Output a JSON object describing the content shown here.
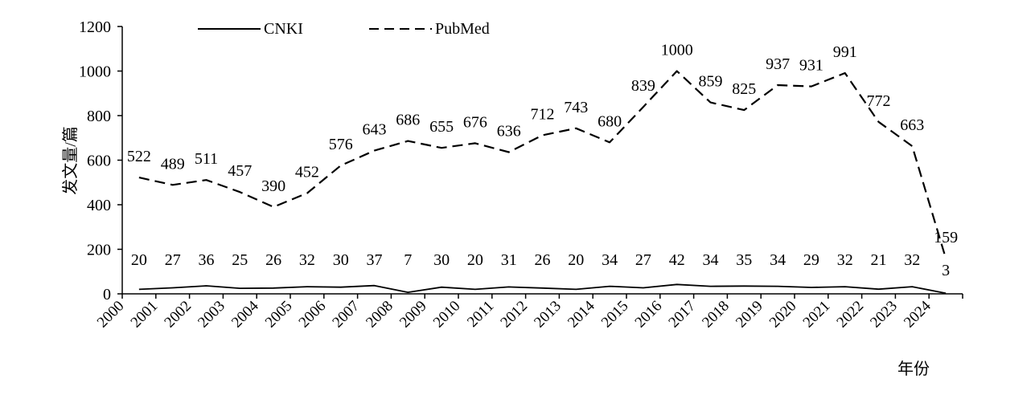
{
  "chart_data": {
    "type": "line",
    "title": "",
    "xlabel": "年份",
    "ylabel": "发文量/篇",
    "ylim": [
      0,
      1200
    ],
    "yticks": [
      "0",
      "200",
      "400",
      "600",
      "800",
      "1000",
      "1200"
    ],
    "categories": [
      "2000",
      "2001",
      "2002",
      "2003",
      "2004",
      "2005",
      "2006",
      "2007",
      "2008",
      "2009",
      "2010",
      "2011",
      "2012",
      "2013",
      "2014",
      "2015",
      "2016",
      "2017",
      "2018",
      "2019",
      "2020",
      "2021",
      "2022",
      "2023",
      "2024"
    ],
    "series": [
      {
        "name": "CNKI",
        "style": "solid",
        "values": [
          20,
          27,
          36,
          25,
          26,
          32,
          30,
          37,
          7,
          30,
          20,
          31,
          26,
          20,
          34,
          27,
          42,
          34,
          35,
          34,
          29,
          32,
          21,
          32,
          3
        ]
      },
      {
        "name": "PubMed",
        "style": "dashed",
        "values": [
          522,
          489,
          511,
          457,
          390,
          452,
          576,
          643,
          686,
          655,
          676,
          636,
          712,
          743,
          680,
          839,
          1000,
          859,
          825,
          937,
          931,
          991,
          772,
          663,
          159
        ]
      }
    ],
    "legend_position": "top",
    "grid": false,
    "line_color": "#000000"
  }
}
